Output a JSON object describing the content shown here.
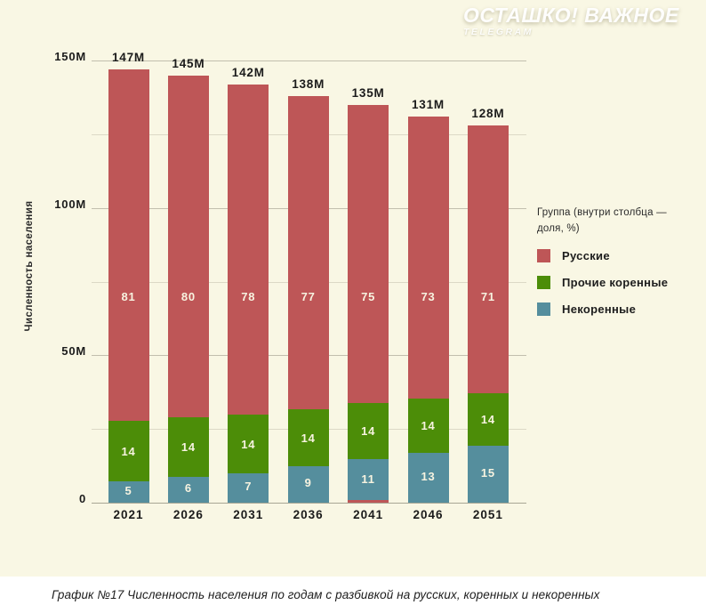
{
  "watermark": {
    "title": "ОСТАШКО! ВАЖНОЕ",
    "subtitle": "TELEGRAM"
  },
  "caption": "График №17 Численность населения по годам с разбивкой на русских, коренных и некоренных",
  "colors": {
    "background": "#f9f7e4",
    "caption_bar": "#ffffff",
    "grid_minor": "#dcd9c6",
    "grid_major": "#c2bfae",
    "axis_text": "#1b1b1b",
    "inside_label_text": "#f7f3e0"
  },
  "chart_data": {
    "type": "bar",
    "stacked": true,
    "title": "",
    "xlabel": "",
    "ylabel": "Численность населения",
    "categories": [
      "2021",
      "2026",
      "2031",
      "2036",
      "2041",
      "2046",
      "2051"
    ],
    "totals_millions": [
      147,
      145,
      142,
      138,
      135,
      131,
      128
    ],
    "totals_label": [
      "147M",
      "145M",
      "142M",
      "138M",
      "135M",
      "131M",
      "128M"
    ],
    "series": [
      {
        "name": "Русские",
        "color": "#be5657",
        "share_pct": [
          81,
          80,
          78,
          77,
          75,
          73,
          71
        ]
      },
      {
        "name": "Прочие коренные",
        "color": "#4c8d08",
        "share_pct": [
          14,
          14,
          14,
          14,
          14,
          14,
          14
        ]
      },
      {
        "name": "Некоренные",
        "color": "#558e9d",
        "share_pct": [
          5,
          6,
          7,
          9,
          11,
          13,
          15
        ]
      }
    ],
    "legend": {
      "title": "Группа (внутри столбца — доля, %)",
      "position": "right"
    },
    "ylim": [
      0,
      150
    ],
    "y_ticks": [
      "0",
      "50M",
      "100M",
      "150M"
    ],
    "y_tick_values": [
      0,
      50,
      100,
      150
    ],
    "grid_step_millions": 25,
    "grid": true,
    "value_labels": "inside (share %)",
    "total_labels": "above bars",
    "red_base_sliver_category": "2041"
  }
}
